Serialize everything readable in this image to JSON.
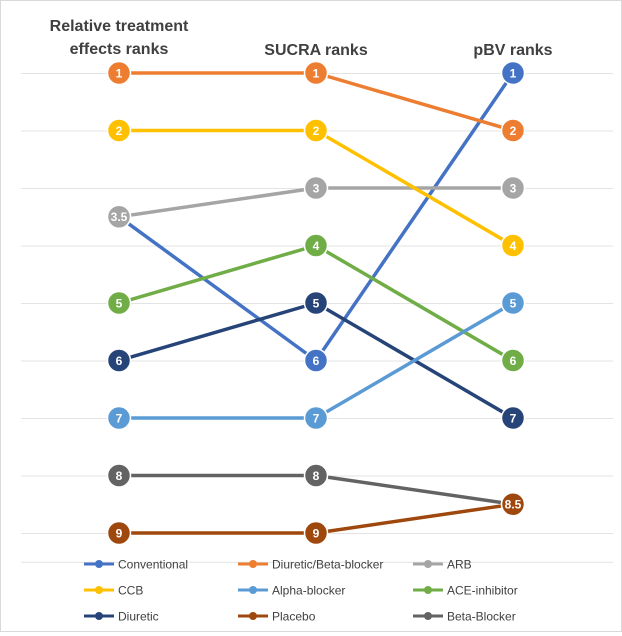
{
  "chart_data": {
    "type": "line",
    "title": "",
    "categories": [
      "Relative treatment effects ranks",
      "SUCRA ranks",
      "pBV ranks"
    ],
    "category_lines": [
      [
        "Relative treatment",
        "effects ranks"
      ],
      [
        "SUCRA ranks"
      ],
      [
        "pBV ranks"
      ]
    ],
    "ylim": [
      0.5,
      9.5
    ],
    "y_reversed": true,
    "grid": true,
    "legend": "bottom",
    "series": [
      {
        "name": "Conventional",
        "color": "#4472C4",
        "values": [
          3.5,
          6,
          1
        ],
        "labels": [
          "3.5",
          "6",
          "1"
        ]
      },
      {
        "name": "Diuretic/Beta-blocker",
        "color": "#ED7D31",
        "values": [
          1,
          1,
          2
        ],
        "labels": [
          "1",
          "1",
          "2"
        ]
      },
      {
        "name": "ARB",
        "color": "#A5A5A5",
        "values": [
          3.5,
          3,
          3
        ],
        "labels": [
          "3.5",
          "3",
          "3"
        ]
      },
      {
        "name": "CCB",
        "color": "#FFC000",
        "values": [
          2,
          2,
          4
        ],
        "labels": [
          "2",
          "2",
          "4"
        ]
      },
      {
        "name": "Alpha-blocker",
        "color": "#5B9BD5",
        "values": [
          7,
          7,
          5
        ],
        "labels": [
          "7",
          "7",
          "5"
        ]
      },
      {
        "name": "ACE-inhibitor",
        "color": "#70AD47",
        "values": [
          5,
          4,
          6
        ],
        "labels": [
          "5",
          "4",
          "6"
        ]
      },
      {
        "name": "Diuretic",
        "color": "#264478",
        "values": [
          6,
          5,
          7
        ],
        "labels": [
          "6",
          "5",
          "7"
        ]
      },
      {
        "name": "Placebo",
        "color": "#9E480E",
        "values": [
          9,
          9,
          8.5
        ],
        "labels": [
          "9",
          "9",
          "8.5"
        ]
      },
      {
        "name": "Beta-Blocker",
        "color": "#636363",
        "values": [
          8,
          8,
          8.5
        ],
        "labels": [
          "8",
          "8",
          "8.5"
        ]
      }
    ]
  }
}
